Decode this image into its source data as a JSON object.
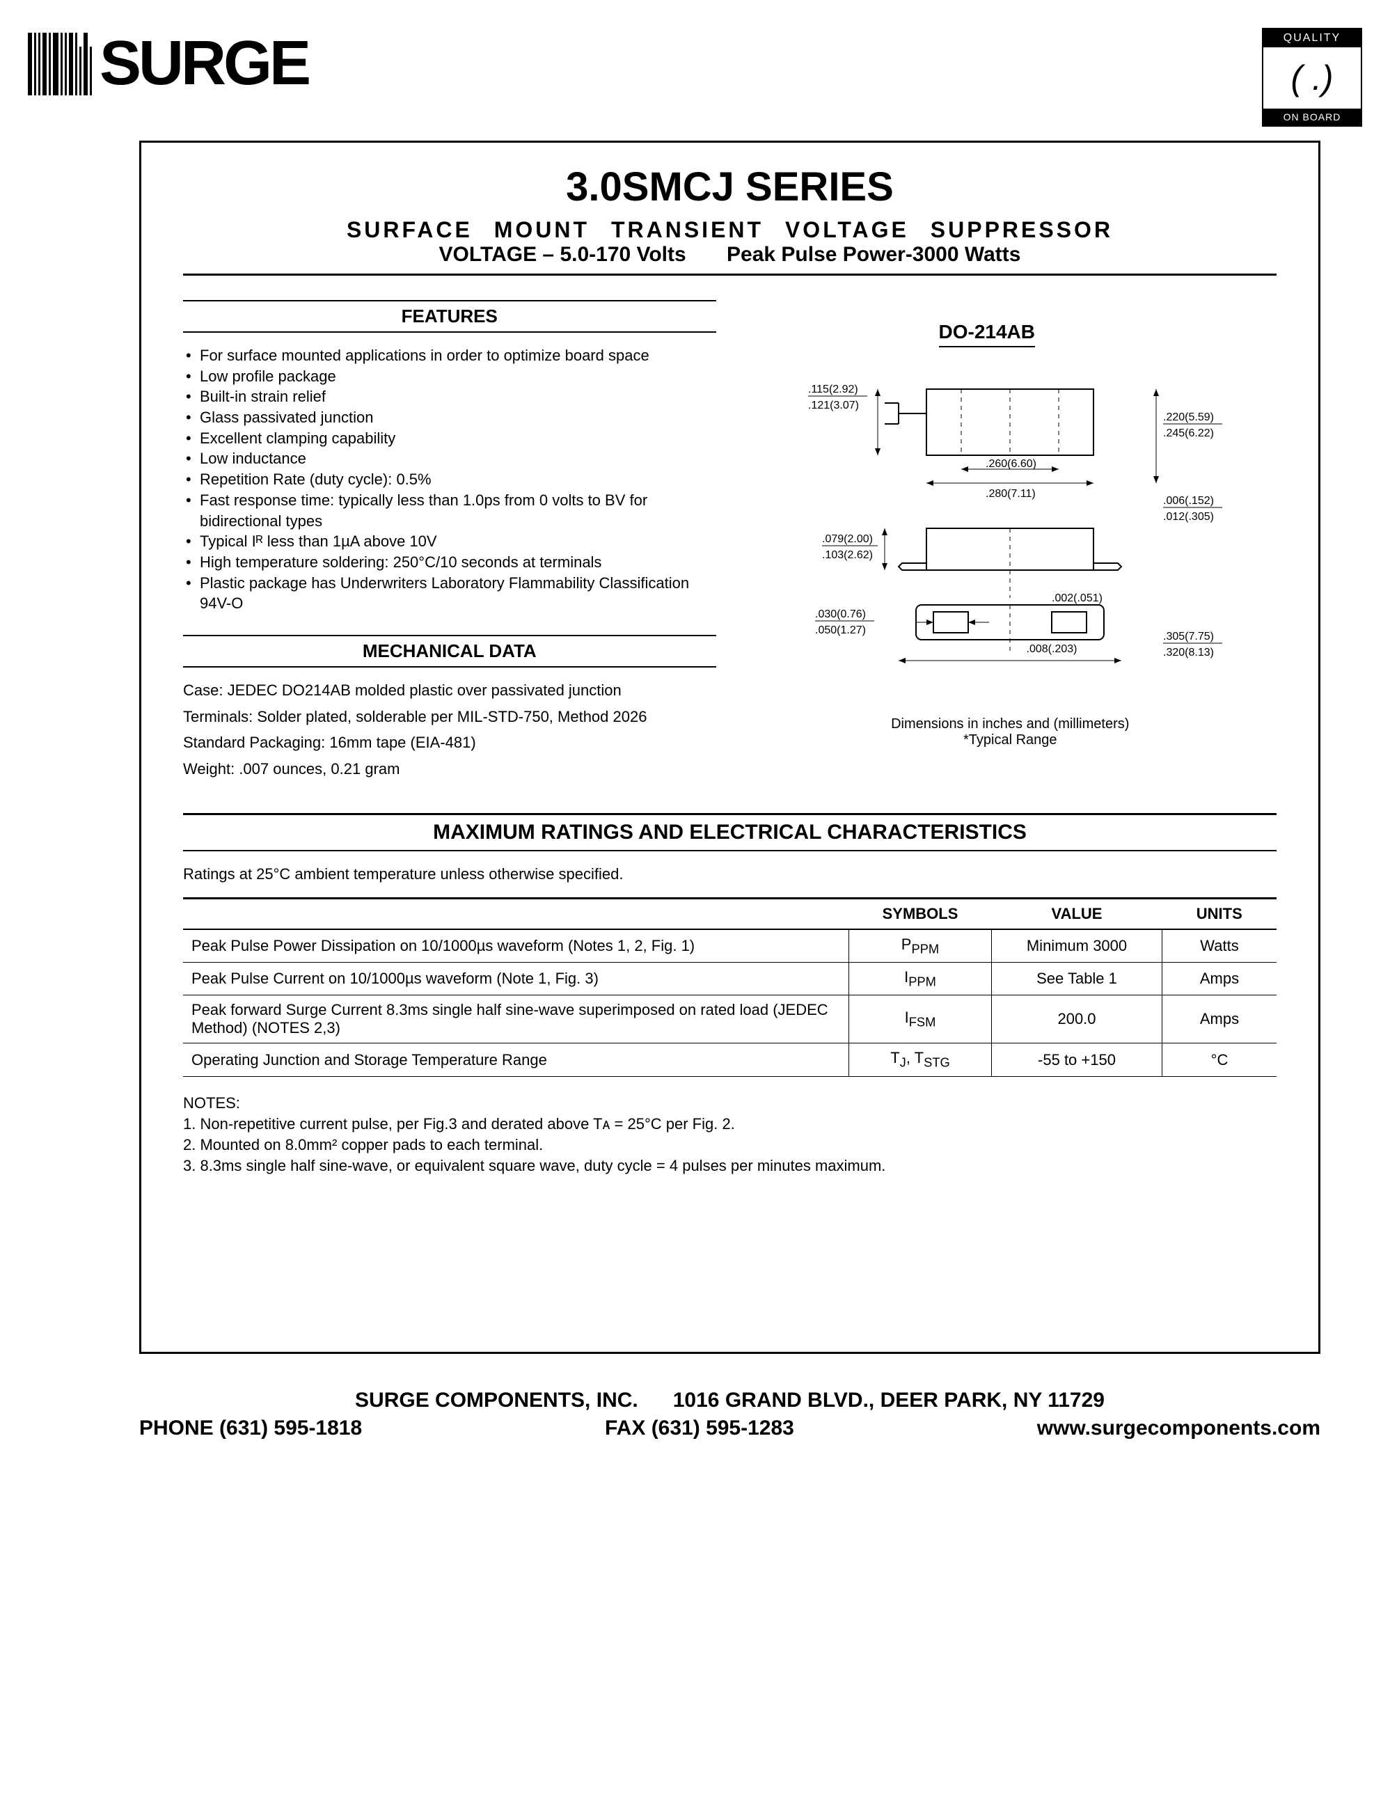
{
  "logo_text": "SURGE",
  "quality_badge": {
    "top": "QUALITY",
    "mid": "( .)",
    "bottom": "ON BOARD"
  },
  "title": "3.0SMCJ SERIES",
  "subtitle1": "SURFACE MOUNT TRANSIENT VOLTAGE SUPPRESSOR",
  "subtitle2_left": "VOLTAGE – 5.0-170 Volts",
  "subtitle2_right": "Peak Pulse Power-3000 Watts",
  "features_heading": "FEATURES",
  "features": [
    "For surface mounted applications in order to optimize board space",
    "Low profile package",
    "Built-in strain relief",
    "Glass passivated junction",
    "Excellent clamping capability",
    "Low inductance",
    "Repetition Rate (duty cycle): 0.5%",
    "Fast response time: typically less than 1.0ps from 0 volts to BV for bidirectional types",
    "Typical Iᴿ less than 1µA above 10V",
    "High temperature soldering: 250°C/10 seconds at terminals",
    "Plastic package has Underwriters Laboratory Flammability Classification 94V-O"
  ],
  "mech_heading": "MECHANICAL DATA",
  "mech": [
    "Case: JEDEC DO214AB molded plastic over passivated junction",
    "Terminals: Solder plated, solderable per MIL-STD-750, Method 2026",
    "Standard Packaging: 16mm tape (EIA-481)",
    "Weight: .007 ounces, 0.21 gram"
  ],
  "package_name": "DO-214AB",
  "diagram": {
    "dims": {
      "h1": ".115(2.92)",
      "h2": ".121(3.07)",
      "w1": ".260(6.60)",
      "w2": ".280(7.11)",
      "r1": ".220(5.59)",
      "r2": ".245(6.22)",
      "b1": ".079(2.00)",
      "b2": ".103(2.62)",
      "l1": ".030(0.76)",
      "l2": ".050(1.27)",
      "g1": ".002(.051)",
      "g2": ".008(.203)",
      "t1": ".006(.152)",
      "t2": ".012(.305)",
      "o1": ".305(7.75)",
      "o2": ".320(8.13)"
    },
    "caption1": "Dimensions in inches and (millimeters)",
    "caption2": "*Typical Range"
  },
  "ratings_heading": "MAXIMUM RATINGS AND ELECTRICAL CHARACTERISTICS",
  "ratings_note": "Ratings at 25°C ambient temperature unless otherwise specified.",
  "ratings_table": {
    "columns": [
      "",
      "SYMBOLS",
      "VALUE",
      "UNITS"
    ],
    "rows": [
      [
        "Peak Pulse Power Dissipation on 10/1000µs waveform (Notes 1, 2, Fig. 1)",
        "Pᴘᴘᴍ",
        "Minimum 3000",
        "Watts"
      ],
      [
        "Peak Pulse Current on 10/1000µs waveform (Note 1, Fig. 3)",
        "Iᴘᴘᴍ",
        "See Table 1",
        "Amps"
      ],
      [
        "Peak forward Surge Current 8.3ms single half sine-wave superimposed on rated load (JEDEC Method) (NOTES 2,3)",
        "Iੜᴘᴍ",
        "200.0",
        "Amps"
      ],
      [
        "Operating Junction and Storage Temperature Range",
        "Tʲ, Tˢᴛɢ",
        "-55 to +150",
        "°C"
      ]
    ],
    "symbols_html": [
      "P<sub>PPM</sub>",
      "I<sub>PPM</sub>",
      "I<sub>FSM</sub>",
      "T<sub>J</sub>, T<sub>STG</sub>"
    ]
  },
  "notes_heading": "NOTES:",
  "notes": [
    "1. Non-repetitive current pulse, per Fig.3 and derated above Tᴀ = 25°C per Fig. 2.",
    "2. Mounted on 8.0mm² copper pads to each terminal.",
    "3. 8.3ms single half sine-wave, or equivalent square wave, duty cycle = 4 pulses per minutes maximum."
  ],
  "footer": {
    "line1_left": "SURGE COMPONENTS, INC.",
    "line1_right": "1016 GRAND BLVD., DEER PARK, NY  11729",
    "line2_phone": "PHONE (631) 595-1818",
    "line2_fax": "FAX (631) 595-1283",
    "line2_web": "www.surgecomponents.com"
  },
  "colors": {
    "text": "#000000",
    "bg": "#ffffff",
    "line": "#000000"
  }
}
